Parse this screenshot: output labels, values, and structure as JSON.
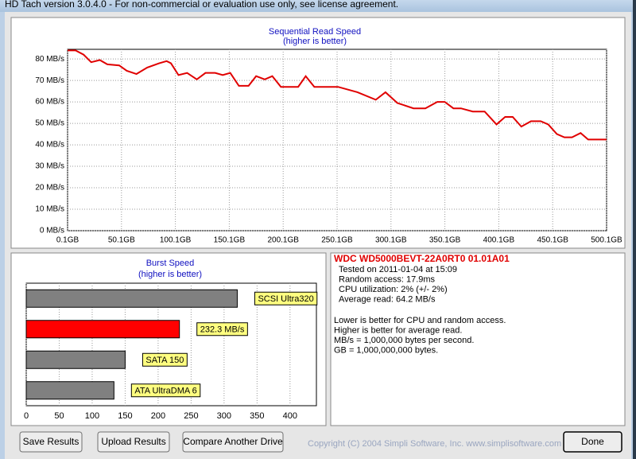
{
  "window": {
    "title": "HD Tach version 3.0.4.0  - For non-commercial or evaluation use only, see license agreement."
  },
  "read_chart": {
    "type": "line",
    "title": "Sequential Read Speed",
    "subtitle": "(higher is better)",
    "color": "#e00000",
    "grid": true,
    "x": [
      0.1,
      7.5,
      15,
      22,
      30,
      37,
      48,
      55,
      64,
      74,
      85,
      92,
      96,
      103,
      111,
      120,
      128,
      137,
      144,
      151,
      159,
      168,
      175,
      183,
      190,
      198,
      214,
      221,
      229,
      251,
      269,
      286,
      295,
      306,
      321,
      332,
      343,
      350,
      358,
      365,
      376,
      387,
      398,
      406,
      413,
      421,
      430,
      439,
      446,
      454,
      461,
      468,
      476,
      483,
      500.1
    ],
    "values": [
      84,
      84,
      82,
      78.5,
      79.5,
      77.5,
      77,
      74.5,
      73,
      76,
      78,
      79,
      78,
      72.5,
      73.5,
      70.5,
      73.5,
      73.5,
      72.5,
      73.5,
      67.5,
      67.5,
      72,
      70.5,
      72,
      67,
      67,
      72,
      67,
      67,
      64.5,
      61,
      64.5,
      59.5,
      57,
      57,
      60,
      60,
      57,
      57,
      55.5,
      55.5,
      49.5,
      53,
      53,
      48.5,
      51,
      51,
      49.5,
      45,
      43.5,
      43.5,
      45.5,
      42.5,
      42.5
    ],
    "xlim": [
      0.1,
      500.1
    ],
    "ylim": [
      0,
      84.5
    ],
    "xticks": [
      {
        "value": 0.1,
        "label": "0.1GB"
      },
      {
        "value": 50.1,
        "label": "50.1GB"
      },
      {
        "value": 100.1,
        "label": "100.1GB"
      },
      {
        "value": 150.1,
        "label": "150.1GB"
      },
      {
        "value": 200.1,
        "label": "200.1GB"
      },
      {
        "value": 250.1,
        "label": "250.1GB"
      },
      {
        "value": 300.1,
        "label": "300.1GB"
      },
      {
        "value": 350.1,
        "label": "350.1GB"
      },
      {
        "value": 400.1,
        "label": "400.1GB"
      },
      {
        "value": 450.1,
        "label": "450.1GB"
      },
      {
        "value": 500.1,
        "label": "500.1GB"
      }
    ],
    "yticks": [
      {
        "value": 0,
        "label": "0 MB/s"
      },
      {
        "value": 10,
        "label": "10 MB/s"
      },
      {
        "value": 20,
        "label": "20 MB/s"
      },
      {
        "value": 30,
        "label": "30 MB/s"
      },
      {
        "value": 40,
        "label": "40 MB/s"
      },
      {
        "value": 50,
        "label": "50 MB/s"
      },
      {
        "value": 60,
        "label": "60 MB/s"
      },
      {
        "value": 70,
        "label": "70 MB/s"
      },
      {
        "value": 80,
        "label": "80 MB/s"
      }
    ]
  },
  "burst_chart": {
    "type": "bar",
    "title": "Burst Speed",
    "subtitle": "(higher is better)",
    "values": [
      320,
      232.3,
      150,
      133
    ],
    "bar_labels": [
      "SCSI Ultra320",
      "232.3 MB/s",
      "SATA 150",
      "ATA UltraDMA 6"
    ],
    "colors": [
      "#808080",
      "#ff0000",
      "#808080",
      "#808080"
    ],
    "xlim": [
      0,
      440
    ],
    "xticks": [
      0,
      50,
      100,
      150,
      200,
      250,
      300,
      350,
      400
    ],
    "grid": true
  },
  "info": {
    "drive": "WDC WD5000BEVT-22A0RT0 01.01A01",
    "results": [
      "Tested on 2011-01-04 at 15:09",
      "Random access: 17.9ms",
      "CPU utilization: 2% (+/- 2%)",
      "Average read: 64.2 MB/s"
    ],
    "notes": [
      "Lower is better for CPU and random access.",
      "Higher is better for average read.",
      "MB/s = 1,000,000 bytes per second.",
      "GB = 1,000,000,000 bytes."
    ]
  },
  "buttons": [
    "Save Results",
    "Upload Results",
    "Compare Another Drive",
    "Done"
  ],
  "copyright": "Copyright (C) 2004 Simpli Software, Inc. www.simplisoftware.com"
}
